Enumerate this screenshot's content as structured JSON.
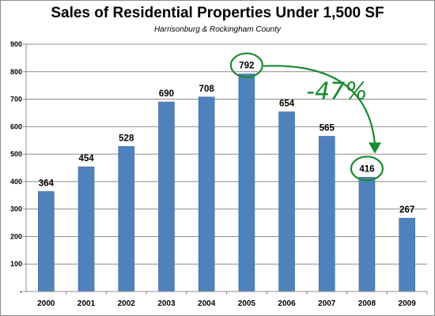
{
  "chart_data": {
    "type": "bar",
    "title": "Sales  of Residential Properties Under 1,500 SF",
    "subtitle": "Harrisonburg & Rockingham County",
    "xlabel": "",
    "ylabel": "",
    "categories": [
      "2000",
      "2001",
      "2002",
      "2003",
      "2004",
      "2005",
      "2006",
      "2007",
      "2008",
      "2009"
    ],
    "values": [
      364,
      454,
      528,
      690,
      708,
      792,
      654,
      565,
      416,
      267
    ],
    "ylim": [
      0,
      900
    ],
    "y_ticks": [
      "-",
      "100",
      "200",
      "300",
      "400",
      "500",
      "600",
      "700",
      "800",
      "900"
    ],
    "grid": true,
    "legend": "none",
    "bar_color": "#4f81bd",
    "annotation": {
      "text": "-47%",
      "color": "#1a8a2e",
      "circled": [
        "2005",
        "2008"
      ],
      "arrow_from": "2005",
      "arrow_to": "2008"
    }
  }
}
